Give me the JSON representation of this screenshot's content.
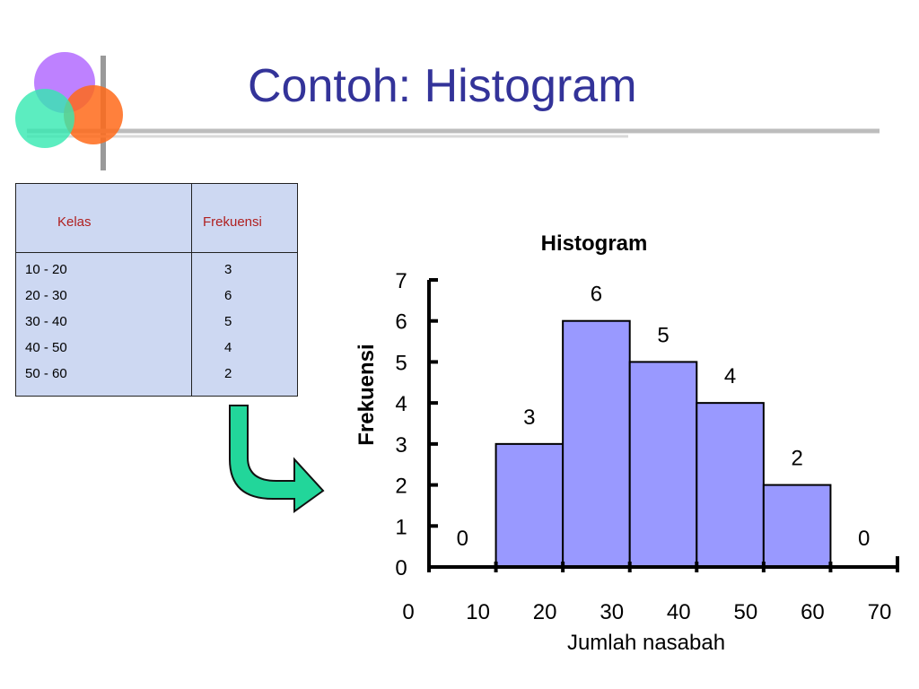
{
  "slide": {
    "title": "Contoh: Histogram"
  },
  "table": {
    "headers": [
      "Kelas",
      "Frekuensi"
    ],
    "rows": [
      {
        "kelas": "10 - 20",
        "frekuensi": "3"
      },
      {
        "kelas": "20 - 30",
        "frekuensi": "6"
      },
      {
        "kelas": "30 - 40",
        "frekuensi": "5"
      },
      {
        "kelas": "40 - 50",
        "frekuensi": "4"
      },
      {
        "kelas": "50 - 60",
        "frekuensi": "2"
      }
    ]
  },
  "colors": {
    "title": "#333399",
    "bar_fill": "#9999ff",
    "table_bg": "#cdd8f2",
    "table_header_text": "#b02020",
    "arrow_fill": "#22d69a"
  },
  "icons": [
    "colored-circles-logo",
    "curved-arrow-icon"
  ],
  "chart_data": {
    "type": "bar",
    "title": "Histogram",
    "xlabel": "Jumlah nasabah",
    "ylabel": "Frekuensi",
    "x_ticks": [
      "0",
      "10",
      "20",
      "30",
      "40",
      "50",
      "60",
      "70"
    ],
    "y_ticks": [
      "0",
      "1",
      "2",
      "3",
      "4",
      "5",
      "6",
      "7"
    ],
    "ylim": [
      0,
      7
    ],
    "categories": [
      "0-10",
      "10-20",
      "20-30",
      "30-40",
      "40-50",
      "50-60",
      "60-70"
    ],
    "values": [
      0,
      3,
      6,
      5,
      4,
      2,
      0
    ],
    "data_labels": [
      "0",
      "3",
      "6",
      "5",
      "4",
      "2",
      "0"
    ],
    "grid": false,
    "legend": "none"
  }
}
